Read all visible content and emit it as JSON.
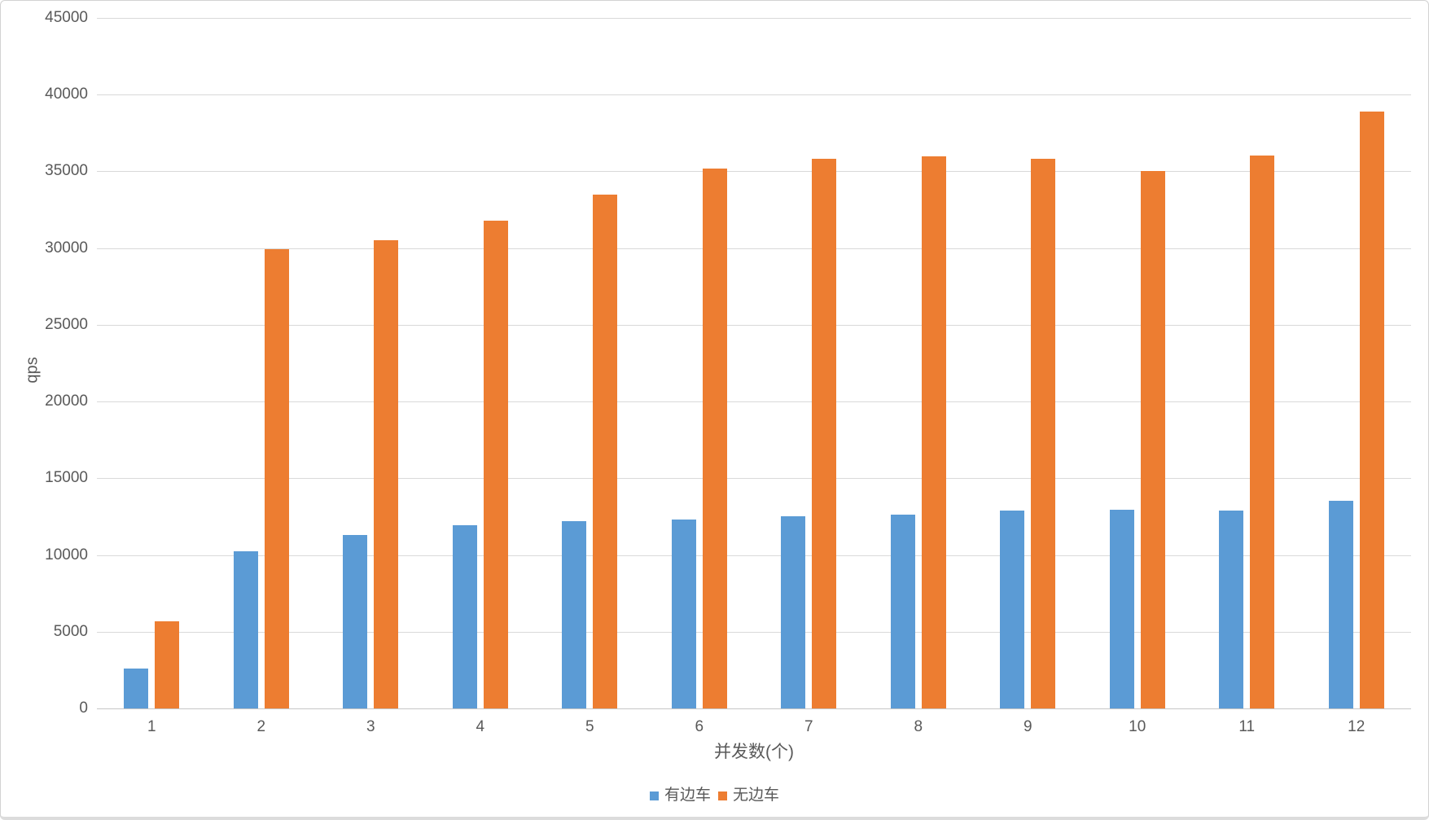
{
  "chart_data": {
    "type": "bar",
    "title": "",
    "xlabel": "并发数(个)",
    "ylabel": "qps",
    "categories": [
      "1",
      "2",
      "3",
      "4",
      "5",
      "6",
      "7",
      "8",
      "9",
      "10",
      "11",
      "12"
    ],
    "series": [
      {
        "key": "with-sidecar",
        "name": "有边车",
        "color": "#5B9BD5",
        "values": [
          2600,
          10250,
          11300,
          11950,
          12200,
          12300,
          12550,
          12650,
          12900,
          12950,
          12900,
          13550
        ]
      },
      {
        "key": "without-sidecar",
        "name": "无边车",
        "color": "#ED7D31",
        "values": [
          5700,
          29950,
          30500,
          31800,
          33500,
          35200,
          35800,
          36000,
          35800,
          35000,
          36050,
          38900
        ]
      }
    ],
    "ylim": [
      0,
      45000
    ],
    "yticks": [
      0,
      5000,
      10000,
      15000,
      20000,
      25000,
      30000,
      35000,
      40000,
      45000
    ],
    "grid": true,
    "legend_position": "bottom"
  },
  "colors": {
    "text": "#595959",
    "gridline": "#d9d9d9",
    "baseline": "#c6c6c6",
    "background": "#ffffff",
    "border": "#d2d2d2"
  }
}
